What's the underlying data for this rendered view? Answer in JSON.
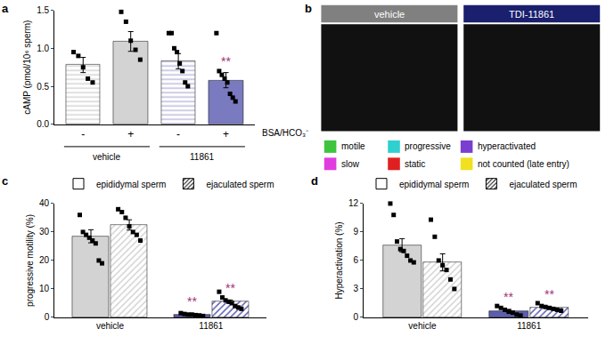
{
  "chart_data": [
    {
      "panel": "a",
      "type": "bar",
      "y_label": "cAMP (pmol/10⁶ sperm)",
      "categories": [
        "-",
        "+",
        "-",
        "+"
      ],
      "category_label": "BSA/HCO₃⁻",
      "groups": [
        {
          "label": "vehicle",
          "indices": [
            0,
            1
          ]
        },
        {
          "label": "11861",
          "indices": [
            2,
            3
          ]
        }
      ],
      "values": [
        0.78,
        1.09,
        0.83,
        0.58
      ],
      "errors": [
        0.1,
        0.13,
        0.1,
        0.1
      ],
      "points": [
        [
          0.95,
          0.9,
          0.75,
          0.6,
          0.55
        ],
        [
          1.48,
          1.35,
          1.1,
          0.98,
          0.85
        ],
        [
          1.2,
          1.2,
          1.0,
          0.95,
          0.8,
          0.7,
          0.55,
          0.5
        ],
        [
          1.2,
          0.7,
          0.65,
          0.6,
          0.55,
          0.4,
          0.35,
          0.3
        ]
      ],
      "colors": [
        "#d3d3d3",
        "#d3d3d3",
        "#b9b9dd",
        "#7a7ac0"
      ],
      "ylim": [
        0,
        1.5
      ],
      "yticks": [
        {
          "value": 0,
          "label": "0.0"
        },
        {
          "value": 0.5,
          "label": "0.5"
        },
        {
          "value": 1,
          "label": "1.0"
        },
        {
          "value": 1.5,
          "label": "1.5"
        }
      ],
      "annotations": [
        {
          "text": "**",
          "index": 3,
          "color": "#a0307a"
        }
      ]
    },
    {
      "panel": "b",
      "type": "image",
      "images": [
        {
          "label": "vehicle",
          "color": "#808080"
        },
        {
          "label": "TDI-11861",
          "color": "#1a1f6e"
        }
      ],
      "legend_items": [
        {
          "label": "motile",
          "color": "#3ec43e"
        },
        {
          "label": "progressive",
          "color": "#2fd0d0"
        },
        {
          "label": "hyperactivated",
          "color": "#7a3fd0"
        },
        {
          "label": "slow",
          "color": "#e03ce0"
        },
        {
          "label": "static",
          "color": "#e02020"
        },
        {
          "label": "not counted (late entry)",
          "color": "#f0e020"
        }
      ]
    },
    {
      "panel": "c",
      "type": "bar",
      "y_label": "progressive motility (%)",
      "categories": [
        "vehicle",
        "11861"
      ],
      "series": [
        {
          "name": "epididymal sperm",
          "marker": "solid",
          "colors": [
            "#d3d3d3",
            "#5d5db0"
          ],
          "values": [
            28.5,
            1.0
          ],
          "errors": [
            2.3,
            0.2
          ],
          "points": [
            [
              36,
              30,
              29,
              28,
              27,
              26,
              20,
              19
            ],
            [
              1.5,
              1.2,
              1,
              1,
              0.8,
              0.7,
              0.5
            ]
          ]
        },
        {
          "name": "ejaculated sperm",
          "marker": "hatched",
          "colors": [
            "#d3d3d3",
            "#5d5db0"
          ],
          "values": [
            32.5,
            5.5
          ],
          "errors": [
            1.8,
            0.6
          ],
          "points": [
            [
              38,
              37,
              35,
              32,
              30,
              29,
              27
            ],
            [
              9,
              7,
              6,
              5.5,
              5,
              4,
              3.5,
              3
            ]
          ]
        }
      ],
      "ylim": [
        0,
        40
      ],
      "yticks": [
        0,
        10,
        20,
        30,
        40
      ],
      "annotations": [
        {
          "text": "**",
          "category": "11861",
          "series": "epididymal sperm",
          "color": "#a0307a"
        },
        {
          "text": "**",
          "category": "11861",
          "series": "ejaculated sperm",
          "color": "#a0307a"
        }
      ]
    },
    {
      "panel": "d",
      "type": "bar",
      "y_label": "Hyperactivation (%)",
      "categories": [
        "vehicle",
        "11861"
      ],
      "series": [
        {
          "name": "epididymal sperm",
          "marker": "solid",
          "colors": [
            "#d3d3d3",
            "#5d5db0"
          ],
          "values": [
            7.6,
            0.7
          ],
          "errors": [
            0.7,
            0.15
          ],
          "points": [
            [
              12,
              10.8,
              8,
              7.2,
              7,
              6.5,
              6,
              5.8
            ],
            [
              1.2,
              1,
              0.8,
              0.6,
              0.5,
              0.3,
              0.2
            ]
          ]
        },
        {
          "name": "ejaculated sperm",
          "marker": "hatched",
          "colors": [
            "#d3d3d3",
            "#5d5db0"
          ],
          "values": [
            5.8,
            1.0
          ],
          "errors": [
            0.9,
            0.1
          ],
          "points": [
            [
              10.3,
              8.5,
              6,
              5.5,
              5,
              4,
              3
            ],
            [
              1.5,
              1.2,
              1.1,
              1,
              0.9,
              0.8,
              0.7
            ]
          ]
        }
      ],
      "ylim": [
        0,
        12
      ],
      "yticks": [
        0,
        3,
        6,
        9,
        12
      ],
      "annotations": [
        {
          "text": "**",
          "category": "11861",
          "series": "epididymal sperm",
          "color": "#a0307a"
        },
        {
          "text": "**",
          "category": "11861",
          "series": "ejaculated sperm",
          "color": "#a0307a"
        }
      ]
    }
  ]
}
